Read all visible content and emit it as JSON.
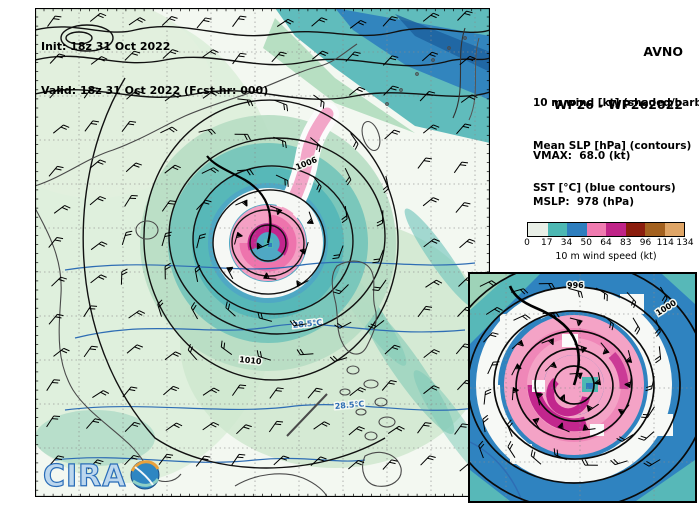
{
  "main_map": {
    "init_label": "Init: 18z 31 Oct 2022",
    "valid_label": "Valid: 18z 31 Oct 2022 (Fcst hr: 000)",
    "slp_contour_labels": [
      "1006",
      "1010"
    ],
    "sst_contour_labels": [
      "28.5°C",
      "28.5°C"
    ],
    "logo_text": "CIRA"
  },
  "header": {
    "model": "AVNO",
    "storm_id": "WP26 - WP262022"
  },
  "info_panel": {
    "legend_lines": [
      "10 m wind [kt] (shaded/barb)",
      "Mean SLP [hPa] (contours)",
      "SST [°C] (blue contours)"
    ],
    "vmax": "VMAX:  68.0 (kt)",
    "mslp": "MSLP:  978 (hPa)"
  },
  "colorbar": {
    "title": "10 m wind speed (kt)",
    "tick_labels": [
      "0",
      "17",
      "34",
      "50",
      "64",
      "83",
      "96",
      "114",
      "134"
    ],
    "bounds_kt": [
      0,
      17,
      34,
      50,
      64,
      83,
      96,
      114,
      134
    ],
    "segment_colors": [
      "#e9efe7",
      "#4db8b3",
      "#2e7ebe",
      "#f07bb0",
      "#c02488",
      "#8b1e0e",
      "#a3611f",
      "#dfa566"
    ]
  },
  "inset": {
    "slp_contour_labels": [
      "996",
      "1000"
    ]
  }
}
